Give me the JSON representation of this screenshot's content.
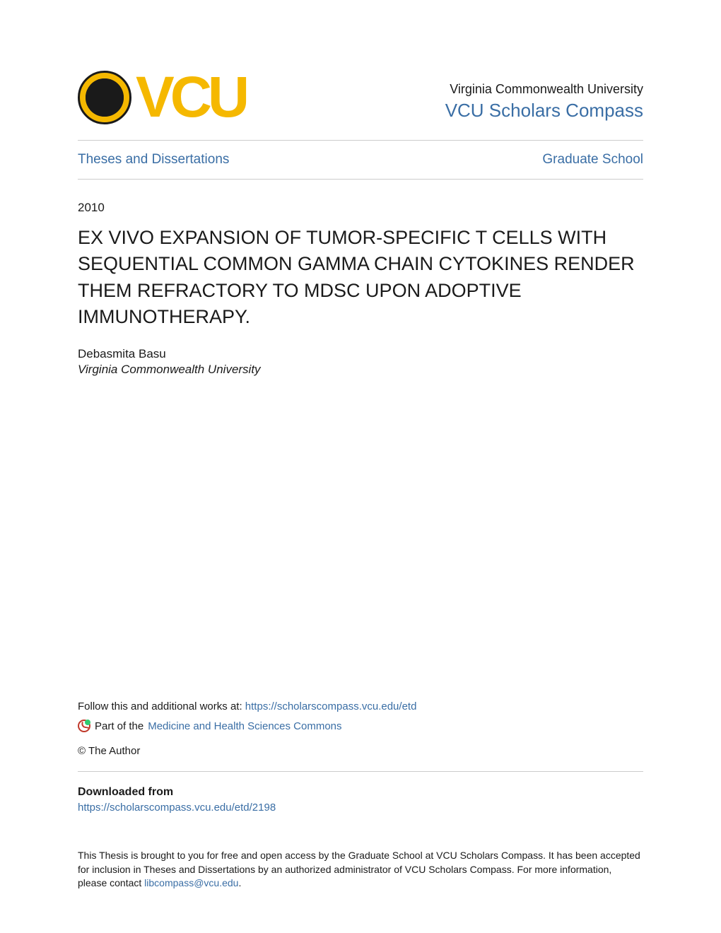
{
  "colors": {
    "link": "#3a6ea5",
    "text": "#1a1a1a",
    "brand_yellow": "#f5b800",
    "divider": "#cccccc",
    "background": "#ffffff"
  },
  "header": {
    "logo_text": "VCU",
    "university_name": "Virginia Commonwealth University",
    "repository_name": "VCU Scholars Compass"
  },
  "breadcrumb": {
    "collection": "Theses and Dissertations",
    "department": "Graduate School"
  },
  "record": {
    "year": "2010",
    "title": "EX VIVO EXPANSION OF TUMOR-SPECIFIC T CELLS WITH SEQUENTIAL COMMON GAMMA CHAIN CYTOKINES RENDER THEM REFRACTORY TO MDSC UPON ADOPTIVE IMMUNOTHERAPY.",
    "author_name": "Debasmita Basu",
    "author_affiliation": "Virginia Commonwealth University"
  },
  "links": {
    "follow_prefix": "Follow this and additional works at: ",
    "follow_url": "https://scholarscompass.vcu.edu/etd",
    "commons_prefix": "Part of the ",
    "commons_label": "Medicine and Health Sciences Commons",
    "copyright": "© The Author",
    "downloaded_heading": "Downloaded from",
    "downloaded_url": "https://scholarscompass.vcu.edu/etd/2198"
  },
  "footer": {
    "text_1": "This Thesis is brought to you for free and open access by the Graduate School at VCU Scholars Compass. It has been accepted for inclusion in Theses and Dissertations by an authorized administrator of VCU Scholars Compass. For more information, please contact ",
    "contact_email": "libcompass@vcu.edu",
    "text_2": "."
  }
}
